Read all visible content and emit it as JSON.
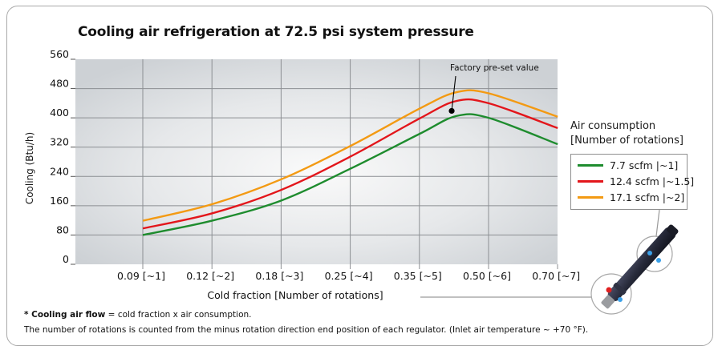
{
  "chart_data": {
    "type": "line",
    "title": "Cooling air refrigeration at 72.5 psi system pressure",
    "xlabel": "Cold fraction [Number of rotations]",
    "ylabel": "Cooling (Btu/h)",
    "x": [
      0.09,
      0.12,
      0.18,
      0.25,
      0.35,
      0.43,
      0.5,
      0.7
    ],
    "x_tick_labels": [
      "0.09 [~1]",
      "0.12 [~2]",
      "0.18 [~3]",
      "0.25 [~4]",
      "0.35 [~5]",
      "0.50 [~6]",
      "0.70 [~7]"
    ],
    "y_ticks": [
      0,
      80,
      160,
      240,
      320,
      400,
      480,
      560
    ],
    "ylim": [
      0,
      560
    ],
    "grid": true,
    "legend_title": [
      "Air consumption",
      "[Number of rotations]"
    ],
    "legend_position": "right",
    "series": [
      {
        "name": "7.7 scfm |~1]",
        "color": "#1e8c2e",
        "values": [
          80,
          119,
          174,
          261,
          356,
          405,
          400,
          328
        ]
      },
      {
        "name": "12.4 scfm |~1.5]",
        "color": "#e3161b",
        "values": [
          98,
          139,
          203,
          294,
          398,
          446,
          440,
          372
        ]
      },
      {
        "name": "17.1 scfm |~2]",
        "color": "#f39a13",
        "values": [
          119,
          164,
          232,
          323,
          425,
          470,
          467,
          403
        ]
      }
    ],
    "annotations": [
      {
        "text": "Factory pre-set value",
        "x": 0.42,
        "y": 419
      }
    ]
  },
  "footnotes": {
    "line1_bold": "* Cooling air flow",
    "line1_rest": " = cold fraction x air consumption.",
    "line2": "The number of rotations is counted from the minus rotation direction end position of each regulator. (Inlet air temperature ~ +70 °F)."
  },
  "product_image": "vortex-tube-regulator"
}
